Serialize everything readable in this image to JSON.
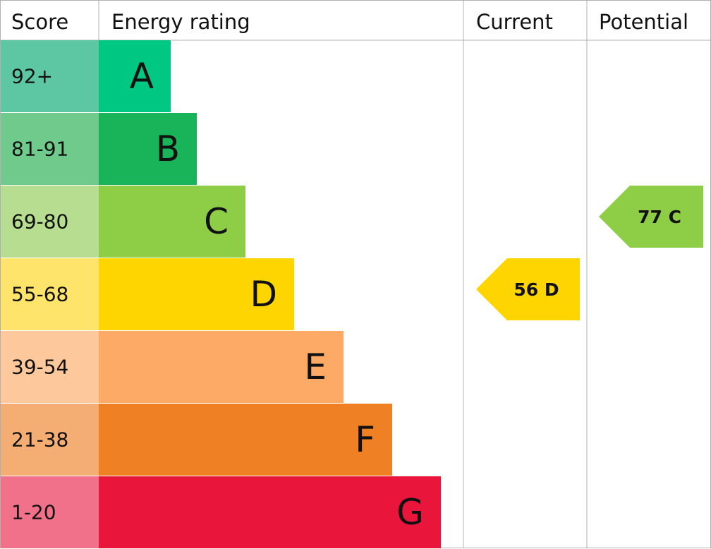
{
  "header": [
    "Score",
    "Energy rating",
    "Current",
    "Potential"
  ],
  "bands": [
    {
      "score": "92+",
      "letter": "A",
      "color": "#00c781",
      "score_color": "#5dc7a3"
    },
    {
      "score": "81-91",
      "letter": "B",
      "color": "#19b459",
      "score_color": "#6fca8b"
    },
    {
      "score": "69-80",
      "letter": "C",
      "color": "#8dce46",
      "score_color": "#b7de90"
    },
    {
      "score": "55-68",
      "letter": "D",
      "color": "#ffd500",
      "score_color": "#ffe46c"
    },
    {
      "score": "39-54",
      "letter": "E",
      "color": "#fcaa65",
      "score_color": "#fdc89c"
    },
    {
      "score": "21-38",
      "letter": "F",
      "color": "#ef8023",
      "score_color": "#f4ae74"
    },
    {
      "score": "1-20",
      "letter": "G",
      "color": "#e9153b",
      "score_color": "#f1718a"
    }
  ],
  "current": {
    "score": 56,
    "letter": "D"
  },
  "potential": {
    "score": 77,
    "letter": "C"
  }
}
